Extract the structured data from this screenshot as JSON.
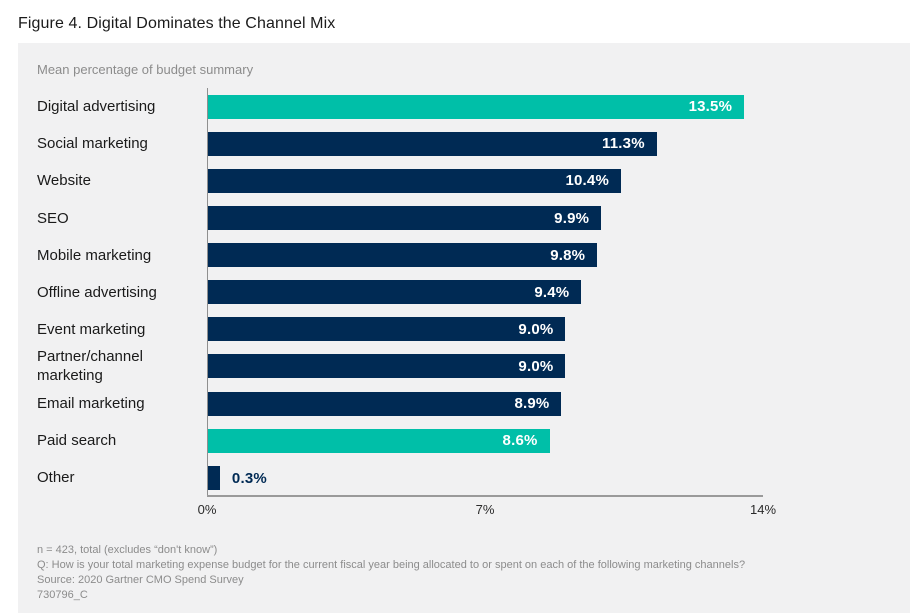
{
  "figure_title": "Figure 4. Digital Dominates the Channel Mix",
  "chart_data": {
    "type": "bar",
    "orientation": "horizontal",
    "title": "Figure 4. Digital Dominates the Channel Mix",
    "subtitle": "Mean percentage of budget summary",
    "categories": [
      "Digital advertising",
      "Social marketing",
      "Website",
      "SEO",
      "Mobile marketing",
      "Offline advertising",
      "Event marketing",
      "Partner/channel marketing",
      "Email marketing",
      "Paid search",
      "Other"
    ],
    "values": [
      13.5,
      11.3,
      10.4,
      9.9,
      9.8,
      9.4,
      9.0,
      9.0,
      8.9,
      8.6,
      0.3
    ],
    "value_labels": [
      "13.5%",
      "11.3%",
      "10.4%",
      "9.9%",
      "9.8%",
      "9.4%",
      "9.0%",
      "9.0%",
      "8.9%",
      "8.6%",
      "0.3%"
    ],
    "bar_color_keys": [
      "teal",
      "navy",
      "navy",
      "navy",
      "navy",
      "navy",
      "navy",
      "navy",
      "navy",
      "teal",
      "navy"
    ],
    "xlim": [
      0,
      14
    ],
    "x_ticks": [
      "0%",
      "7%",
      "14%"
    ],
    "grid": false,
    "legend": "none"
  },
  "colors": {
    "teal": "#00bfa8",
    "navy": "#002a54",
    "panel_background": "#f1f1f2",
    "axis_line": "#9a9a9a",
    "muted_text": "#8c8c8c"
  },
  "footer": {
    "lines": [
      "n = 423, total (excludes “don't know”)",
      "Q: How is your total marketing expense budget for the current fiscal year being allocated to or spent on each of the following marketing channels?",
      "Source: 2020 Gartner CMO Spend Survey",
      "730796_C"
    ]
  }
}
